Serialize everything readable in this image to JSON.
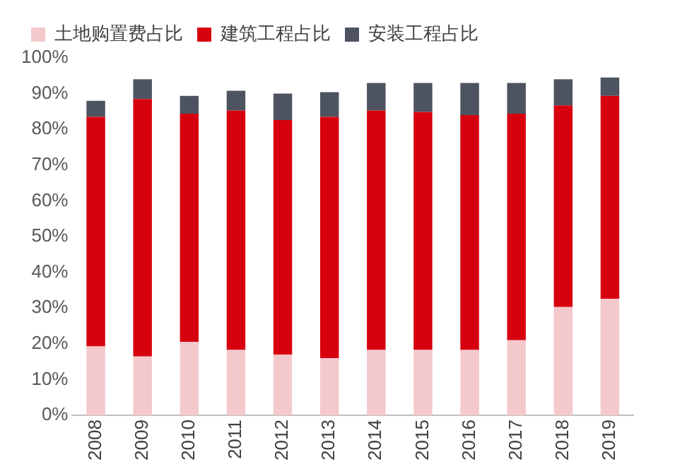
{
  "chart_data": {
    "type": "bar",
    "stacked": true,
    "categories": [
      "2008",
      "2009",
      "2010",
      "2011",
      "2012",
      "2013",
      "2014",
      "2015",
      "2016",
      "2017",
      "2018",
      "2019"
    ],
    "series": [
      {
        "name": "土地购置费占比",
        "color": "#f4c9cc",
        "values": [
          19.3,
          16.5,
          20.6,
          18.3,
          17,
          16,
          18.3,
          18.3,
          18.3,
          21,
          30.3,
          32.6
        ]
      },
      {
        "name": "建筑工程占比",
        "color": "#d7000f",
        "values": [
          64.2,
          72,
          63.8,
          67,
          65.6,
          67.5,
          67,
          66.6,
          65.7,
          63.4,
          56.4,
          56.8
        ]
      },
      {
        "name": "安装工程占比",
        "color": "#4d5360",
        "values": [
          4.5,
          5.5,
          5,
          5.5,
          7.4,
          6.9,
          7.7,
          8.1,
          9,
          8.6,
          7.3,
          5.1
        ]
      }
    ],
    "ylim": [
      0,
      100
    ],
    "yticks": [
      {
        "value": 0,
        "label": "0%"
      },
      {
        "value": 10,
        "label": "10%"
      },
      {
        "value": 20,
        "label": "20%"
      },
      {
        "value": 30,
        "label": "30%"
      },
      {
        "value": 40,
        "label": "40%"
      },
      {
        "value": 50,
        "label": "50%"
      },
      {
        "value": 60,
        "label": "60%"
      },
      {
        "value": 70,
        "label": "70%"
      },
      {
        "value": 80,
        "label": "80%"
      },
      {
        "value": 90,
        "label": "90%"
      },
      {
        "value": 100,
        "label": "100%"
      }
    ],
    "grid": false,
    "legend": "top"
  }
}
